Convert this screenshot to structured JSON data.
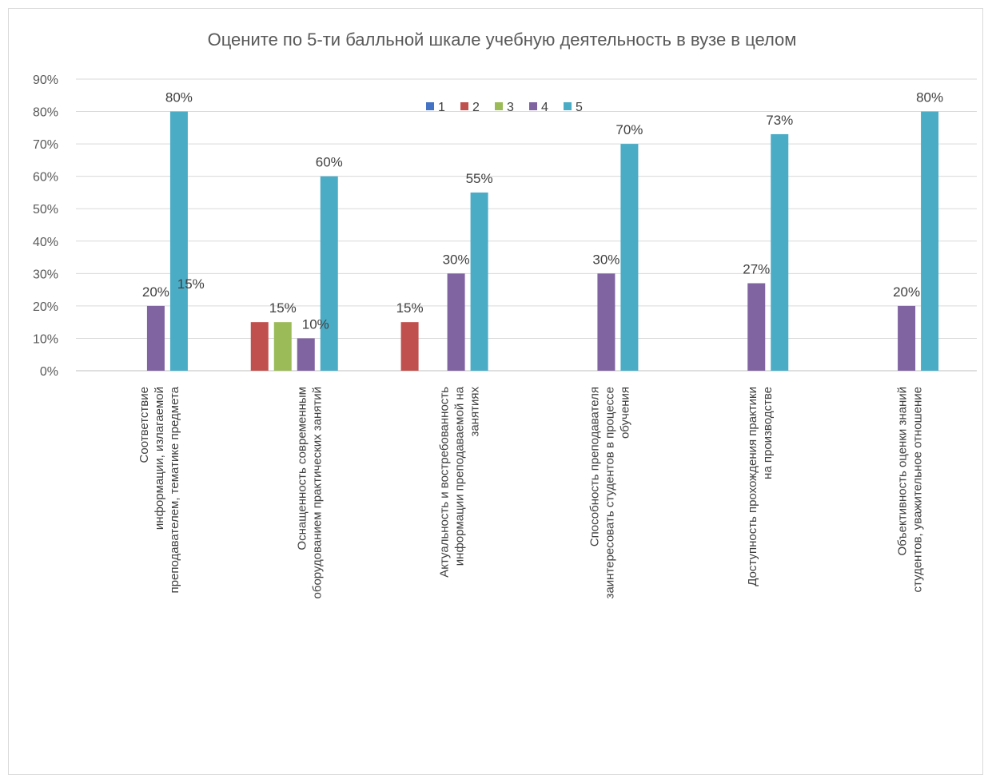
{
  "chart_data": {
    "type": "bar",
    "title": "Оцените по 5-ти балльной шкале учебную деятельность в вузе в целом",
    "xlabel": "",
    "ylabel": "",
    "ylim": [
      0,
      90
    ],
    "yticks": [
      "0%",
      "10%",
      "20%",
      "30%",
      "40%",
      "50%",
      "60%",
      "70%",
      "80%",
      "90%"
    ],
    "grid": true,
    "legend_position": "top-center",
    "categories": [
      [
        "Соответствие",
        "информации, излагаемой",
        "преподавателем, тематике предмета"
      ],
      [
        "Оснащенность современным",
        "оборудованием практических занятий"
      ],
      [
        "Актуальность и востребованность",
        "информации преподаваемой на",
        "занятиях"
      ],
      [
        "Способность преподавателя",
        "заинтересовать студентов в процессе",
        "обучения"
      ],
      [
        "Доступность прохождения практики",
        "на производстве"
      ],
      [
        "Объективность оценки знаний",
        "студентов, уважительное отношение"
      ]
    ],
    "series": [
      {
        "name": "1",
        "color": "#4472c4",
        "values": [
          null,
          15,
          null,
          null,
          null,
          null
        ],
        "labels": [
          "",
          "15%",
          "",
          "",
          "",
          ""
        ]
      },
      {
        "name": "2",
        "color": "#c0504d",
        "values": [
          null,
          15,
          15,
          null,
          null,
          null
        ],
        "labels": [
          "",
          "",
          "15%",
          "",
          "",
          ""
        ]
      },
      {
        "name": "3",
        "color": "#9bbb59",
        "values": [
          null,
          15,
          null,
          null,
          null,
          null
        ],
        "labels": [
          "",
          "15%",
          "",
          "",
          "",
          ""
        ]
      },
      {
        "name": "4",
        "color": "#8064a2",
        "values": [
          20,
          10,
          30,
          30,
          27,
          20
        ],
        "labels": [
          "20%",
          "10%",
          "30%",
          "30%",
          "27%",
          "20%"
        ]
      },
      {
        "name": "5",
        "color": "#4bacc6",
        "values": [
          80,
          60,
          55,
          70,
          73,
          80
        ],
        "labels": [
          "80%",
          "60%",
          "55%",
          "70%",
          "73%",
          "80%"
        ]
      }
    ]
  }
}
